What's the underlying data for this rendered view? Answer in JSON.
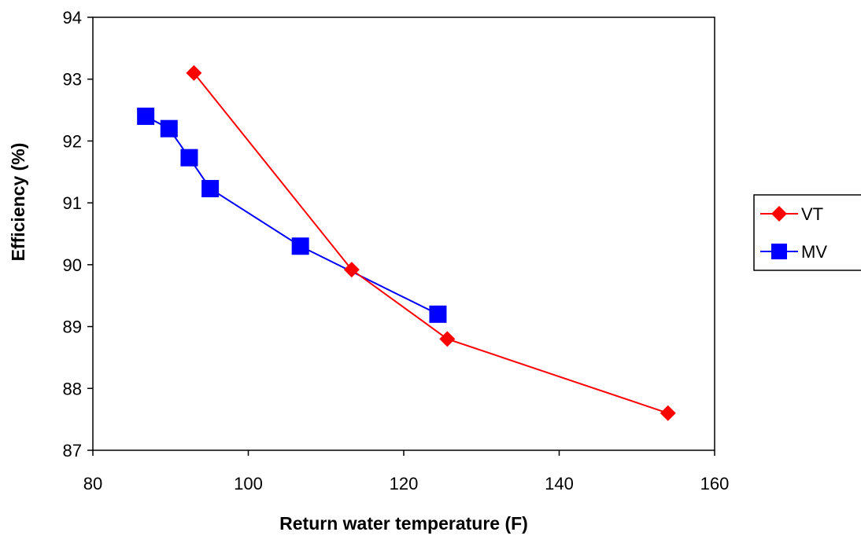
{
  "chart_data": {
    "type": "line",
    "title": "",
    "xlabel": "Return water temperature (F)",
    "ylabel": "Efficiency (%)",
    "xlim": [
      80,
      160
    ],
    "ylim": [
      87,
      94
    ],
    "xticks": [
      80,
      100,
      120,
      140,
      160
    ],
    "yticks": [
      87,
      88,
      89,
      90,
      91,
      92,
      93,
      94
    ],
    "xtick_labels": [
      "80",
      "100",
      "120",
      "140",
      "160"
    ],
    "ytick_labels": [
      "87",
      "88",
      "89",
      "90",
      "91",
      "92",
      "93",
      "94"
    ],
    "grid": false,
    "legend_position": "right",
    "series": [
      {
        "name": "VT",
        "color": "#ff0000",
        "marker": "diamond",
        "x": [
          93,
          113.3,
          125.6,
          154
        ],
        "y": [
          93.1,
          89.92,
          88.8,
          87.6
        ]
      },
      {
        "name": "MV",
        "color": "#0000ff",
        "marker": "square",
        "x": [
          86.8,
          89.8,
          92.4,
          95.1,
          106.7,
          124.4
        ],
        "y": [
          92.4,
          92.2,
          91.73,
          91.23,
          90.3,
          89.2
        ]
      }
    ]
  }
}
